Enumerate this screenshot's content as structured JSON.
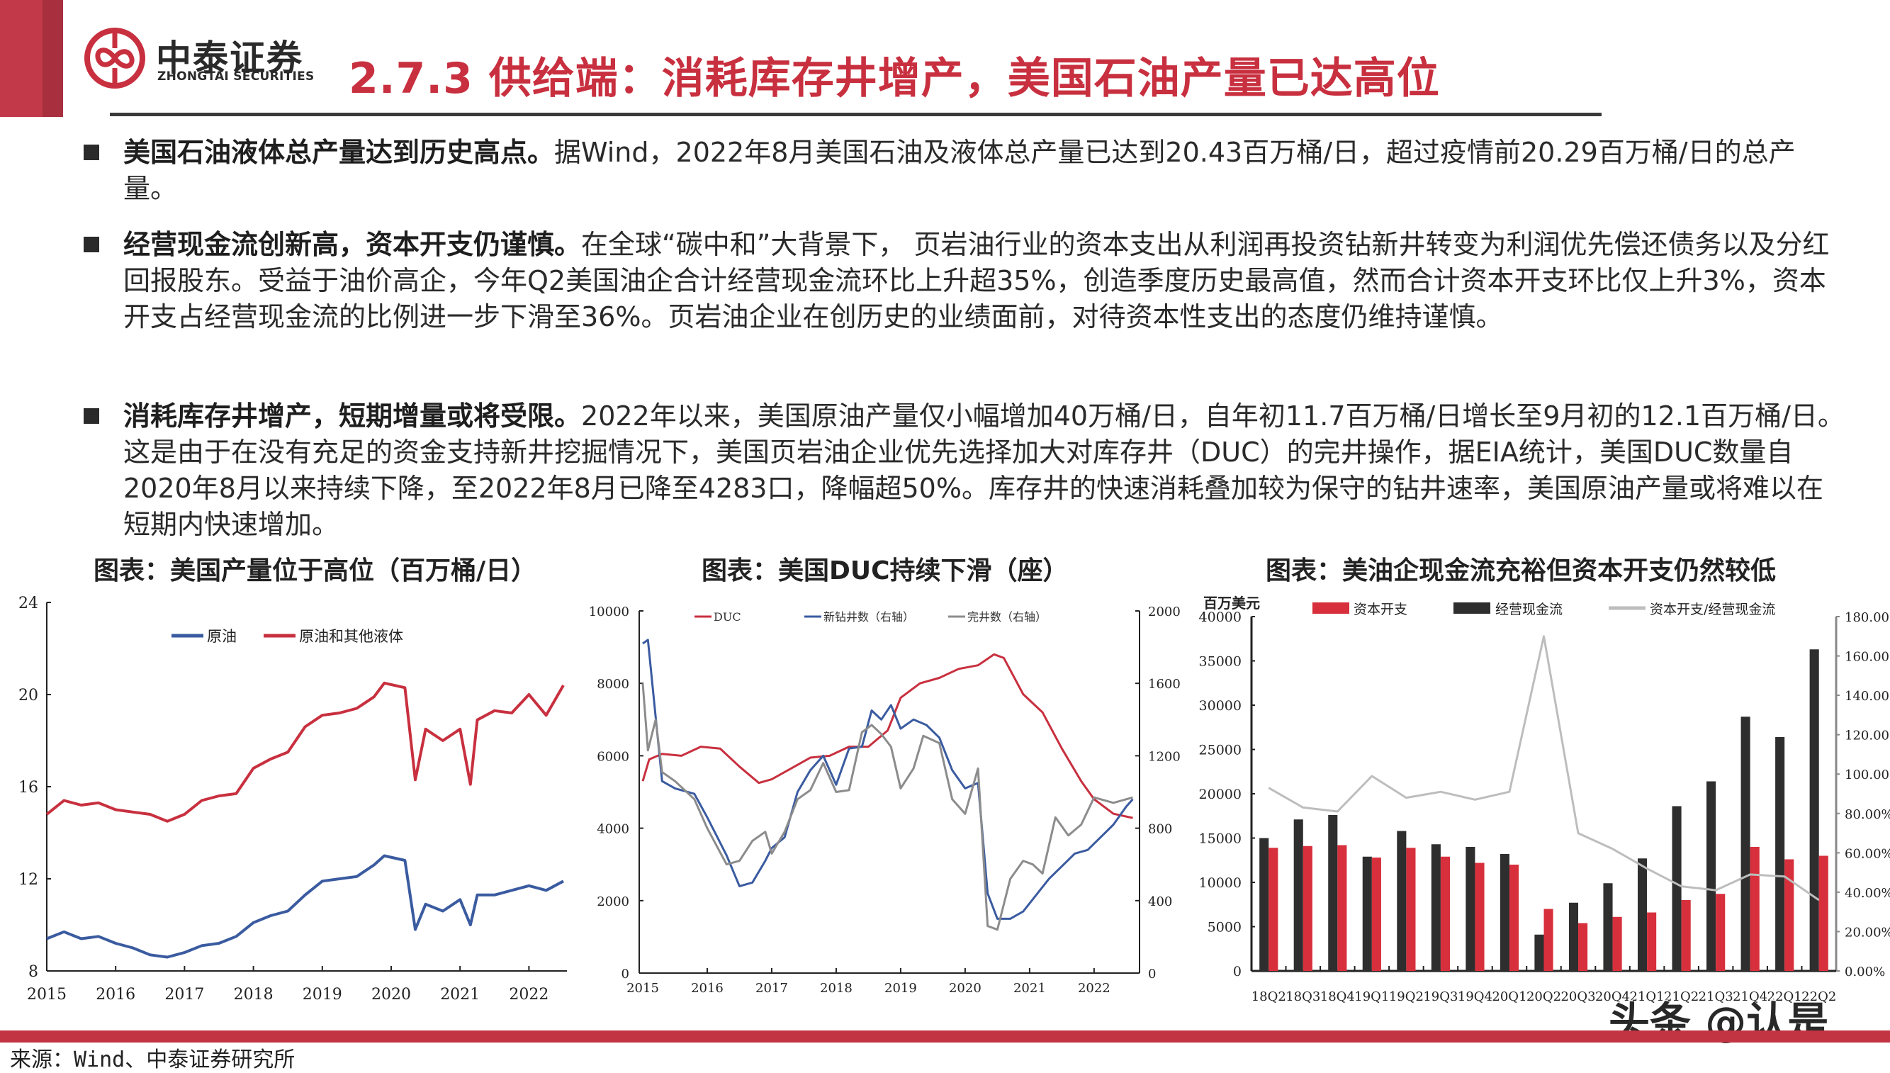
{
  "header": {
    "brand_cn": "中泰证券",
    "brand_en": "ZHONGTAI SECURITIES",
    "title": "2.7.3 供给端：消耗库存井增产，美国石油产量已达高位",
    "accent_color": "#c8303f"
  },
  "bullets": [
    {
      "bold": "美国石油液体总产量达到历史高点。",
      "text": "据Wind，2022年8月美国石油及液体总产量已达到20.43百万桶/日，超过疫情前20.29百万桶/日的总产量。"
    },
    {
      "bold": "经营现金流创新高，资本开支仍谨慎。",
      "text": "在全球“碳中和”大背景下， 页岩油行业的资本支出从利润再投资钻新井转变为利润优先偿还债务以及分红回报股东。受益于油价高企，今年Q2美国油企合计经营现金流环比上升超35%，创造季度历史最高值，然而合计资本开支环比仅上升3%，资本开支占经营现金流的比例进一步下滑至36%。页岩油企业在创历史的业绩面前，对待资本性支出的态度仍维持谨慎。"
    },
    {
      "bold": "消耗库存井增产，短期增量或将受限。",
      "text": "2022年以来，美国原油产量仅小幅增加40万桶/日，自年初11.7百万桶/日增长至9月初的12.1百万桶/日。这是由于在没有充足的资金支持新井挖掘情况下，美国页岩油企业优先选择加大对库存井（DUC）的完井操作，据EIA统计，美国DUC数量自2020年8月以来持续下降，至2022年8月已降至4283口，降幅超50%。库存井的快速消耗叠加较为保守的钻井速率，美国原油产量或将难以在短期内快速增加。"
    }
  ],
  "footer": {
    "source": "来源：Wind、中泰证券研究所",
    "watermark": "头条 @认是"
  },
  "chart_data": [
    {
      "type": "line",
      "title": "图表：美国产量位于高位（百万桶/日）",
      "xlabel": "",
      "ylabel": "",
      "ylim": [
        8,
        24
      ],
      "yticks": [
        "24",
        "20",
        "16",
        "12",
        "8"
      ],
      "x_ticks": [
        "2015",
        "2016",
        "2017",
        "2018",
        "2019",
        "2020",
        "2021",
        "2022"
      ],
      "legend": [
        "原油",
        "原油和其他液体"
      ],
      "legend_position": "top-center",
      "grid": false,
      "series": [
        {
          "name": "原油",
          "color": "#3a5ba0",
          "x": [
            2015.0,
            2015.25,
            2015.5,
            2015.75,
            2016.0,
            2016.25,
            2016.5,
            2016.75,
            2017.0,
            2017.25,
            2017.5,
            2017.75,
            2018.0,
            2018.25,
            2018.5,
            2018.75,
            2019.0,
            2019.25,
            2019.5,
            2019.75,
            2019.9,
            2020.2,
            2020.35,
            2020.5,
            2020.75,
            2021.0,
            2021.15,
            2021.25,
            2021.5,
            2021.75,
            2022.0,
            2022.25,
            2022.5
          ],
          "values": [
            9.4,
            9.7,
            9.4,
            9.5,
            9.2,
            9.0,
            8.7,
            8.6,
            8.8,
            9.1,
            9.2,
            9.5,
            10.1,
            10.4,
            10.6,
            11.3,
            11.9,
            12.0,
            12.1,
            12.6,
            13.0,
            12.8,
            9.8,
            10.9,
            10.6,
            11.1,
            10.0,
            11.3,
            11.3,
            11.5,
            11.7,
            11.5,
            11.9
          ]
        },
        {
          "name": "原油和其他液体",
          "color": "#c8303f",
          "x": [
            2015.0,
            2015.25,
            2015.5,
            2015.75,
            2016.0,
            2016.25,
            2016.5,
            2016.75,
            2017.0,
            2017.25,
            2017.5,
            2017.75,
            2018.0,
            2018.25,
            2018.5,
            2018.75,
            2019.0,
            2019.25,
            2019.5,
            2019.75,
            2019.9,
            2020.2,
            2020.35,
            2020.5,
            2020.75,
            2021.0,
            2021.15,
            2021.25,
            2021.5,
            2021.75,
            2022.0,
            2022.25,
            2022.5
          ],
          "values": [
            14.8,
            15.4,
            15.2,
            15.3,
            15.0,
            14.9,
            14.8,
            14.5,
            14.8,
            15.4,
            15.6,
            15.7,
            16.8,
            17.2,
            17.5,
            18.6,
            19.1,
            19.2,
            19.4,
            19.9,
            20.5,
            20.3,
            16.3,
            18.5,
            18.0,
            18.5,
            16.1,
            18.9,
            19.3,
            19.2,
            20.0,
            19.1,
            20.4
          ]
        }
      ]
    },
    {
      "type": "line",
      "title": "图表：美国DUC持续下滑（座）",
      "xlabel": "",
      "ylabel": "",
      "ylim": [
        0,
        10000
      ],
      "y2lim": [
        0,
        2000
      ],
      "yticks": [
        "10000",
        "8000",
        "6000",
        "4000",
        "2000",
        "0"
      ],
      "y2ticks": [
        "2000",
        "1600",
        "1200",
        "800",
        "400",
        "0"
      ],
      "x_ticks": [
        "2015",
        "2016",
        "2017",
        "2018",
        "2019",
        "2020",
        "2021",
        "2022"
      ],
      "legend": [
        "DUC",
        "新钻井数（右轴）",
        "完井数（右轴）"
      ],
      "legend_position": "top",
      "grid": false,
      "series": [
        {
          "name": "DUC",
          "axis": "left",
          "color": "#c8303f",
          "x": [
            2015.0,
            2015.1,
            2015.3,
            2015.6,
            2015.9,
            2016.2,
            2016.5,
            2016.8,
            2017.0,
            2017.3,
            2017.6,
            2017.9,
            2018.2,
            2018.5,
            2018.8,
            2019.0,
            2019.3,
            2019.6,
            2019.9,
            2020.2,
            2020.45,
            2020.6,
            2020.9,
            2021.2,
            2021.5,
            2021.8,
            2022.0,
            2022.3,
            2022.6
          ],
          "values": [
            5300,
            5900,
            6050,
            6000,
            6250,
            6200,
            5700,
            5250,
            5350,
            5650,
            5950,
            6000,
            6250,
            6250,
            6700,
            7600,
            8000,
            8150,
            8400,
            8500,
            8800,
            8700,
            7700,
            7200,
            6200,
            5300,
            4800,
            4400,
            4283
          ]
        },
        {
          "name": "新钻井数（右轴）",
          "axis": "right",
          "color": "#3a5ba0",
          "x": [
            2015.0,
            2015.08,
            2015.3,
            2015.5,
            2015.8,
            2016.0,
            2016.3,
            2016.5,
            2016.7,
            2016.9,
            2017.0,
            2017.2,
            2017.4,
            2017.6,
            2017.8,
            2018.0,
            2018.2,
            2018.4,
            2018.55,
            2018.7,
            2018.85,
            2019.0,
            2019.2,
            2019.4,
            2019.6,
            2019.8,
            2020.0,
            2020.2,
            2020.35,
            2020.5,
            2020.7,
            2020.9,
            2021.1,
            2021.3,
            2021.5,
            2021.7,
            2021.9,
            2022.1,
            2022.3,
            2022.5,
            2022.6
          ],
          "values": [
            1820,
            1840,
            1060,
            1020,
            990,
            860,
            650,
            480,
            500,
            620,
            690,
            750,
            1000,
            1120,
            1200,
            1040,
            1240,
            1250,
            1450,
            1400,
            1480,
            1350,
            1400,
            1370,
            1300,
            1120,
            1020,
            1050,
            440,
            300,
            300,
            340,
            430,
            520,
            590,
            660,
            680,
            750,
            820,
            920,
            960
          ]
        },
        {
          "name": "完井数（右轴）",
          "axis": "right",
          "color": "#8c8c8c",
          "x": [
            2015.0,
            2015.08,
            2015.2,
            2015.3,
            2015.5,
            2015.8,
            2016.0,
            2016.3,
            2016.5,
            2016.7,
            2016.9,
            2017.0,
            2017.2,
            2017.4,
            2017.6,
            2017.8,
            2018.0,
            2018.2,
            2018.4,
            2018.55,
            2018.7,
            2018.85,
            2019.0,
            2019.2,
            2019.35,
            2019.6,
            2019.8,
            2020.0,
            2020.2,
            2020.35,
            2020.5,
            2020.7,
            2020.9,
            2021.05,
            2021.2,
            2021.4,
            2021.6,
            2021.8,
            2022.0,
            2022.3,
            2022.6
          ],
          "values": [
            1600,
            1230,
            1400,
            1110,
            1060,
            960,
            800,
            600,
            620,
            730,
            780,
            660,
            780,
            960,
            1010,
            1160,
            1000,
            1010,
            1330,
            1370,
            1320,
            1250,
            1020,
            1130,
            1310,
            1270,
            960,
            880,
            1130,
            260,
            240,
            520,
            620,
            600,
            550,
            860,
            760,
            820,
            970,
            940,
            970
          ]
        }
      ]
    },
    {
      "type": "bar",
      "title": "图表：美油企现金流充裕但资本开支仍然较低",
      "ylabel": "百万美元",
      "ylim": [
        0,
        40000
      ],
      "y2lim": [
        0,
        1.8
      ],
      "yticks": [
        "40000",
        "35000",
        "30000",
        "25000",
        "20000",
        "15000",
        "10000",
        "5000",
        "0"
      ],
      "y2ticks": [
        "180.00%",
        "160.00%",
        "140.00%",
        "120.00%",
        "100.00%",
        "80.00%",
        "60.00%",
        "40.00%",
        "20.00%",
        "0.00%"
      ],
      "categories": [
        "18Q2",
        "18Q3",
        "18Q4",
        "19Q1",
        "19Q2",
        "19Q3",
        "19Q4",
        "20Q1",
        "20Q2",
        "20Q3",
        "20Q4",
        "21Q1",
        "21Q2",
        "21Q3",
        "21Q4",
        "22Q1",
        "22Q2"
      ],
      "legend": [
        "资本开支",
        "经营现金流",
        "资本开支/经营现金流"
      ],
      "legend_position": "top",
      "grid": false,
      "series": [
        {
          "name": "资本开支",
          "type": "bar",
          "axis": "left",
          "color": "#d7303c",
          "values": [
            13900,
            14100,
            14200,
            12800,
            13900,
            12900,
            12200,
            12000,
            7000,
            5400,
            6100,
            6600,
            8000,
            8700,
            14000,
            12600,
            13000
          ]
        },
        {
          "name": "经营现金流",
          "type": "bar",
          "axis": "left",
          "color": "#2e2e2e",
          "values": [
            15000,
            17100,
            17600,
            12900,
            15800,
            14300,
            14000,
            13200,
            4100,
            7700,
            9900,
            12700,
            18600,
            21400,
            28700,
            26400,
            36300
          ]
        },
        {
          "name": "资本开支/经营现金流",
          "type": "line",
          "axis": "right",
          "color": "#bdbdbd",
          "values": [
            0.93,
            0.83,
            0.81,
            0.99,
            0.88,
            0.91,
            0.87,
            0.91,
            1.7,
            0.7,
            0.62,
            0.52,
            0.43,
            0.41,
            0.49,
            0.48,
            0.36
          ]
        }
      ]
    }
  ]
}
